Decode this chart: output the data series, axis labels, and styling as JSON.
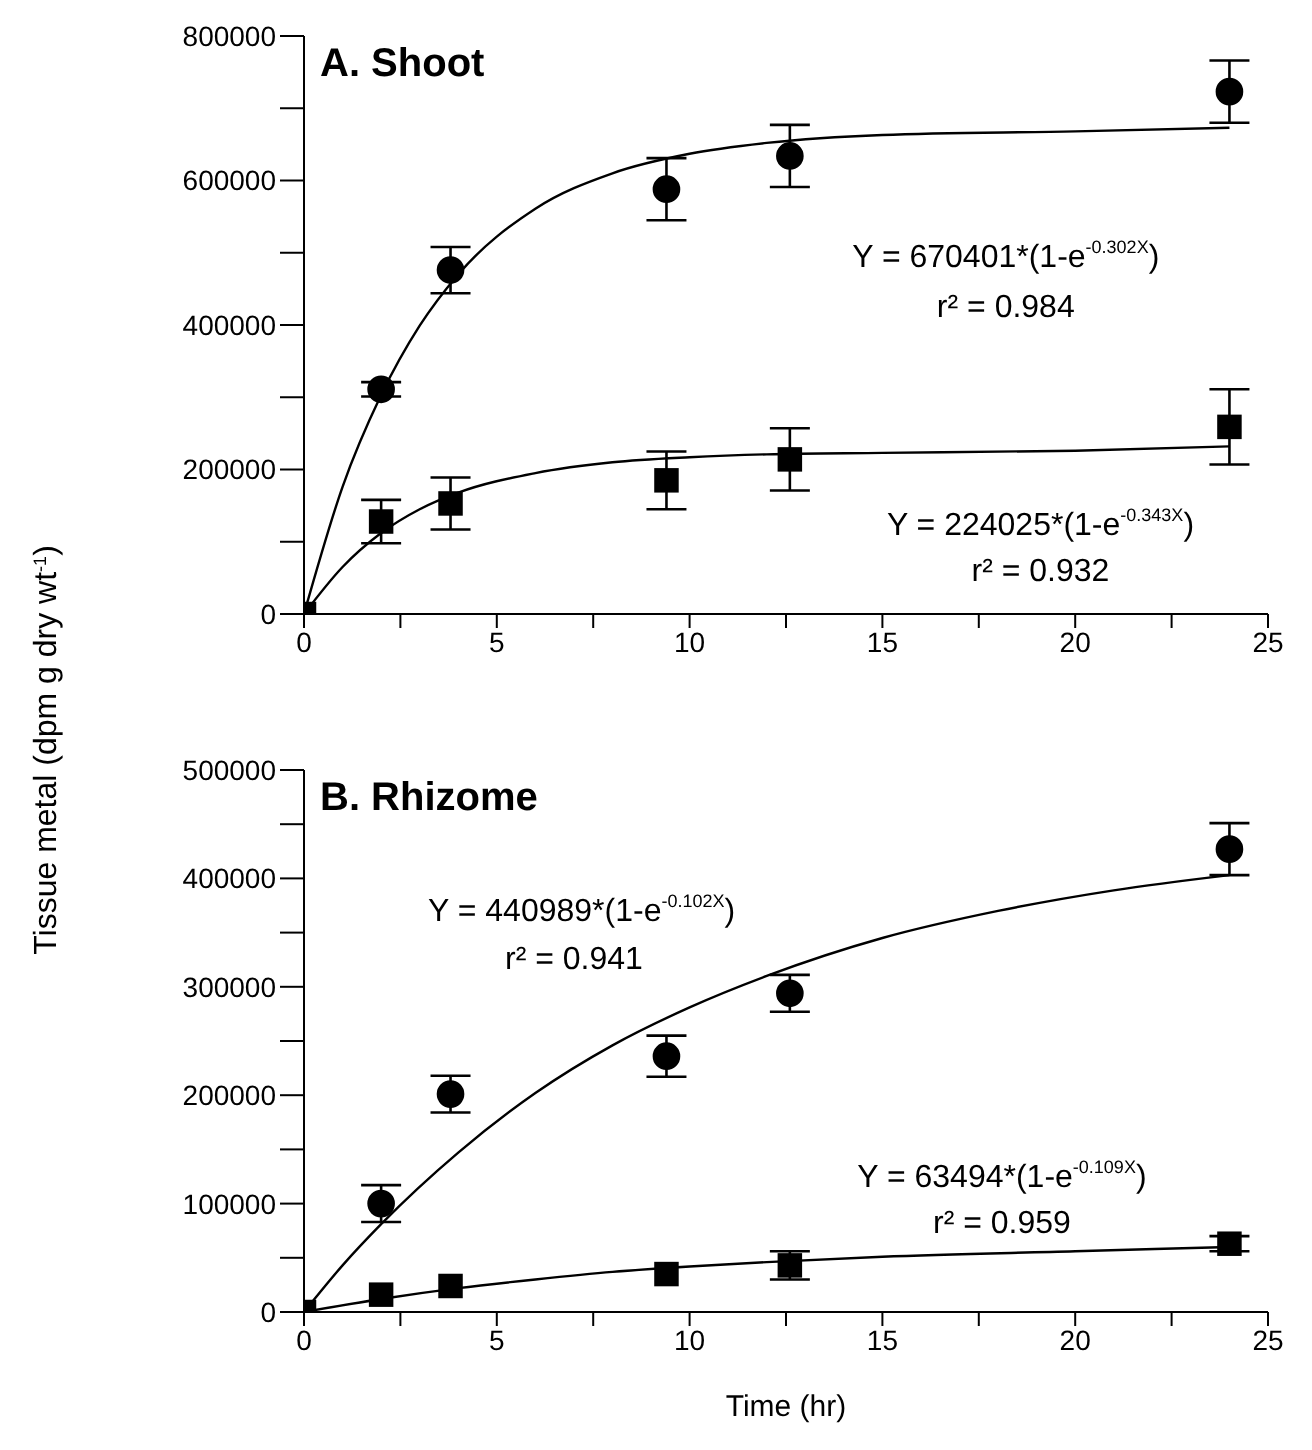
{
  "chart_data": [
    {
      "type": "scatter",
      "title": "A. Shoot",
      "ylabel": "Tissue metal (dpm g dry wt$^{-1}$)",
      "xlim": [
        0,
        25
      ],
      "xticks": [
        0,
        {
          "value": 2.5,
          "label": null
        },
        5,
        {
          "value": 7.5,
          "label": null
        },
        10,
        {
          "value": 12.5,
          "label": null
        },
        15,
        {
          "value": 17.5,
          "label": null
        },
        20,
        {
          "value": 22.5,
          "label": null
        },
        25
      ],
      "ylim": [
        0,
        800000
      ],
      "yticks": [
        0,
        {
          "value": 100000,
          "label": null
        },
        200000,
        {
          "value": 300000,
          "label": null
        },
        400000,
        {
          "value": 500000,
          "label": null
        },
        600000,
        {
          "value": 700000,
          "label": null
        },
        800000
      ],
      "grid": false,
      "legend": false,
      "series": [
        {
          "marker": "circle",
          "color": "#000000",
          "x": [
            2,
            3.8,
            9.4,
            12.6,
            24
          ],
          "values": [
            311000,
            476000,
            588000,
            634000,
            723000
          ],
          "errors": [
            10000,
            32000,
            43000,
            43000,
            43000
          ]
        },
        {
          "marker": "square",
          "color": "#000000",
          "x": [
            0,
            2,
            3.8,
            9.4,
            12.6,
            24
          ],
          "values": [
            0,
            128000,
            153000,
            185000,
            214000,
            259000
          ],
          "errors": [
            null,
            30000,
            36000,
            40000,
            43000,
            52000
          ]
        },
        {
          "type": "line",
          "marker": "none",
          "color": "#000000",
          "x": [
            0,
            1,
            2,
            3,
            4,
            6,
            8,
            10,
            12,
            15,
            20,
            24
          ],
          "values": [
            0,
            176000,
            303000,
            399000,
            470000,
            561000,
            610000,
            637000,
            652000,
            663000,
            668000,
            673000
          ]
        },
        {
          "type": "line",
          "marker": "none",
          "color": "#000000",
          "x": [
            0,
            1,
            2,
            3,
            4,
            6,
            8,
            10,
            12,
            15,
            20,
            24
          ],
          "values": [
            0,
            65000,
            112000,
            145000,
            168000,
            195000,
            210000,
            217000,
            221000,
            223000,
            226000,
            232000
          ]
        }
      ],
      "annotations": [
        "Y = 670401*(1-e$^{-0.302X}$)",
        "r² = 0.984",
        "Y = 224025*(1-e$^{-0.343X}$)",
        "r² = 0.932"
      ]
    },
    {
      "type": "scatter",
      "title": "B. Rhizome",
      "xlabel": "Time (hr)",
      "xlim": [
        0,
        25
      ],
      "xticks": [
        0,
        {
          "value": 2.5,
          "label": null
        },
        5,
        {
          "value": 7.5,
          "label": null
        },
        10,
        {
          "value": 12.5,
          "label": null
        },
        15,
        {
          "value": 17.5,
          "label": null
        },
        20,
        {
          "value": 22.5,
          "label": null
        },
        25
      ],
      "ylim": [
        0,
        500000
      ],
      "yticks": [
        0,
        {
          "value": 50000,
          "label": null
        },
        100000,
        {
          "value": 150000,
          "label": null
        },
        200000,
        {
          "value": 250000,
          "label": null
        },
        300000,
        {
          "value": 350000,
          "label": null
        },
        400000,
        {
          "value": 450000,
          "label": null
        },
        500000
      ],
      "grid": false,
      "legend": false,
      "series": [
        {
          "marker": "circle",
          "color": "#000000",
          "x": [
            2,
            3.8,
            9.4,
            12.6,
            24
          ],
          "values": [
            100000,
            201000,
            236000,
            294000,
            427000
          ],
          "errors": [
            17000,
            17000,
            19000,
            17000,
            24000
          ]
        },
        {
          "marker": "square",
          "color": "#000000",
          "x": [
            0,
            2,
            3.8,
            9.4,
            12.6,
            24
          ],
          "values": [
            0,
            16000,
            24000,
            35000,
            43000,
            63000
          ],
          "errors": [
            null,
            null,
            null,
            null,
            13000,
            7000
          ]
        },
        {
          "type": "line",
          "marker": "none",
          "color": "#000000",
          "x": [
            0,
            1,
            2,
            4,
            6,
            8,
            10,
            12,
            15,
            18,
            21,
            24
          ],
          "values": [
            0,
            43000,
            81000,
            147000,
            202000,
            246000,
            281000,
            310000,
            345000,
            370000,
            389000,
            403000
          ]
        },
        {
          "type": "line",
          "marker": "none",
          "color": "#000000",
          "x": [
            0,
            2,
            4,
            6,
            8,
            10,
            12,
            15,
            20,
            24
          ],
          "values": [
            0,
            12000,
            22000,
            30000,
            37000,
            42000,
            46000,
            51000,
            56000,
            60000
          ]
        }
      ],
      "annotations": [
        "Y = 440989*(1-e$^{-0.102X}$)",
        "r² = 0.941",
        "Y = 63494*(1-e$^{-0.109X}$)",
        "r² = 0.959"
      ]
    }
  ]
}
